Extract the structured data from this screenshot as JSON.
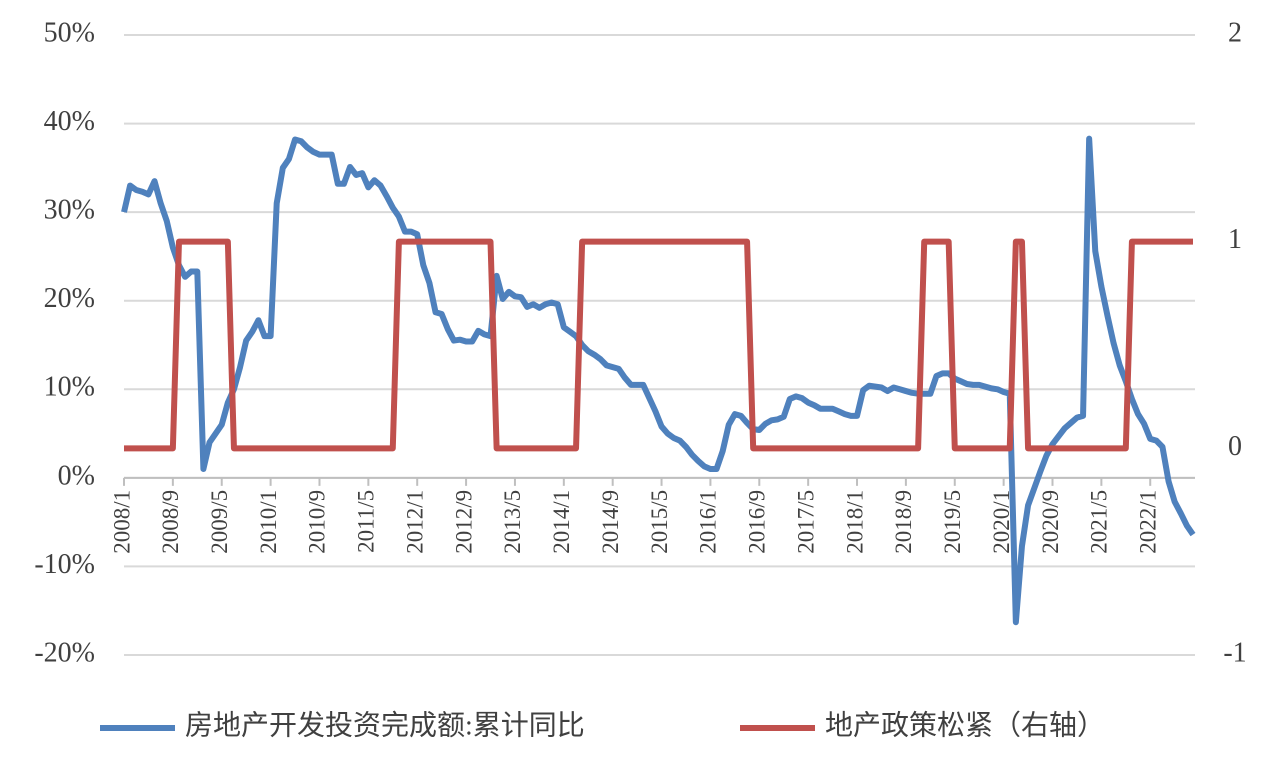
{
  "chart_data": {
    "type": "line",
    "categories": [
      "2008/1",
      null,
      null,
      null,
      null,
      null,
      null,
      null,
      "2008/9",
      null,
      null,
      null,
      null,
      null,
      null,
      null,
      "2009/5",
      null,
      null,
      null,
      null,
      null,
      null,
      null,
      "2010/1",
      null,
      null,
      null,
      null,
      null,
      null,
      null,
      "2010/9",
      null,
      null,
      null,
      null,
      null,
      null,
      null,
      "2011/5",
      null,
      null,
      null,
      null,
      null,
      null,
      null,
      "2012/1",
      null,
      null,
      null,
      null,
      null,
      null,
      null,
      "2012/9",
      null,
      null,
      null,
      null,
      null,
      null,
      null,
      "2013/5",
      null,
      null,
      null,
      null,
      null,
      null,
      null,
      "2014/1",
      null,
      null,
      null,
      null,
      null,
      null,
      null,
      "2014/9",
      null,
      null,
      null,
      null,
      null,
      null,
      null,
      "2015/5",
      null,
      null,
      null,
      null,
      null,
      null,
      null,
      "2016/1",
      null,
      null,
      null,
      null,
      null,
      null,
      null,
      "2016/9",
      null,
      null,
      null,
      null,
      null,
      null,
      null,
      "2017/5",
      null,
      null,
      null,
      null,
      null,
      null,
      null,
      "2018/1",
      null,
      null,
      null,
      null,
      null,
      null,
      null,
      "2018/9",
      null,
      null,
      null,
      null,
      null,
      null,
      null,
      "2019/5",
      null,
      null,
      null,
      null,
      null,
      null,
      null,
      "2020/1",
      null,
      null,
      null,
      null,
      null,
      null,
      null,
      "2020/9",
      null,
      null,
      null,
      null,
      null,
      null,
      null,
      "2021/5",
      null,
      null,
      null,
      null,
      null,
      null,
      null,
      "2022/1",
      null,
      null,
      null,
      null,
      null,
      null,
      null
    ],
    "series": [
      {
        "name": "房地产开发投资完成额:累计同比",
        "color": "#4f81bd",
        "axis": "y",
        "values": [
          30,
          33,
          32.5,
          32.3,
          32,
          33.5,
          31,
          29,
          26,
          24,
          22.7,
          23.3,
          23.3,
          1,
          4,
          5,
          6,
          8.5,
          10,
          12.5,
          15.5,
          16.5,
          17.8,
          16,
          16,
          31,
          35,
          36,
          38.2,
          38,
          37.3,
          36.8,
          36.5,
          36.5,
          36.5,
          33.2,
          33.2,
          35.1,
          34.2,
          34.4,
          32.8,
          33.6,
          33,
          31.8,
          30.5,
          29.5,
          27.8,
          27.8,
          27.5,
          24,
          22,
          18.7,
          18.5,
          16.8,
          15.5,
          15.6,
          15.4,
          15.4,
          16.6,
          16.2,
          16,
          22.8,
          20.2,
          21,
          20.5,
          20.4,
          19.3,
          19.6,
          19.2,
          19.6,
          19.8,
          19.6,
          17,
          16.5,
          16,
          15,
          14.3,
          13.9,
          13.4,
          12.7,
          12.5,
          12.3,
          11.3,
          10.5,
          10.5,
          10.5,
          9,
          7.5,
          5.8,
          5,
          4.5,
          4.2,
          3.5,
          2.6,
          1.9,
          1.3,
          1,
          1,
          3,
          6,
          7.2,
          7,
          6.2,
          5.5,
          5.4,
          6.1,
          6.5,
          6.6,
          6.9,
          8.9,
          9.2,
          9,
          8.5,
          8.2,
          7.8,
          7.8,
          7.8,
          7.5,
          7.2,
          7,
          7,
          9.9,
          10.4,
          10.3,
          10.2,
          9.8,
          10.2,
          10,
          9.8,
          9.6,
          9.5,
          9.5,
          9.5,
          11.5,
          11.8,
          11.8,
          11.2,
          10.9,
          10.6,
          10.5,
          10.5,
          10.3,
          10.1,
          10,
          9.7,
          9.5,
          -16.3,
          -7.7,
          -3.1,
          -1.2,
          0.7,
          2.5,
          3.8,
          4.7,
          5.6,
          6.2,
          6.8,
          7,
          38.3,
          25.6,
          21.6,
          18.3,
          15.2,
          12.7,
          10.9,
          8.9,
          7.2,
          6.1,
          4.4,
          4.2,
          3.5,
          -0.4,
          -2.7,
          -4,
          -5.4,
          -6.4
        ]
      },
      {
        "name": "地产政策松紧（右轴）",
        "color": "#c0504d",
        "axis": "y2",
        "values": [
          0,
          0,
          0,
          0,
          0,
          0,
          0,
          0,
          0,
          1,
          1,
          1,
          1,
          1,
          1,
          1,
          1,
          1,
          0,
          0,
          0,
          0,
          0,
          0,
          0,
          0,
          0,
          0,
          0,
          0,
          0,
          0,
          0,
          0,
          0,
          0,
          0,
          0,
          0,
          0,
          0,
          0,
          0,
          0,
          0,
          1,
          1,
          1,
          1,
          1,
          1,
          1,
          1,
          1,
          1,
          1,
          1,
          1,
          1,
          1,
          1,
          0,
          0,
          0,
          0,
          0,
          0,
          0,
          0,
          0,
          0,
          0,
          0,
          0,
          0,
          1,
          1,
          1,
          1,
          1,
          1,
          1,
          1,
          1,
          1,
          1,
          1,
          1,
          1,
          1,
          1,
          1,
          1,
          1,
          1,
          1,
          1,
          1,
          1,
          1,
          1,
          1,
          1,
          0,
          0,
          0,
          0,
          0,
          0,
          0,
          0,
          0,
          0,
          0,
          0,
          0,
          0,
          0,
          0,
          0,
          0,
          0,
          0,
          0,
          0,
          0,
          0,
          0,
          0,
          0,
          0,
          1,
          1,
          1,
          1,
          1,
          0,
          0,
          0,
          0,
          0,
          0,
          0,
          0,
          0,
          0,
          1,
          1,
          0,
          0,
          0,
          0,
          0,
          0,
          0,
          0,
          0,
          0,
          0,
          0,
          0,
          0,
          0,
          0,
          0,
          1,
          1,
          1,
          1,
          1,
          1,
          1,
          1,
          1,
          1,
          1
        ]
      }
    ],
    "ylim": [
      -20,
      50
    ],
    "yticks": [
      {
        "value": -20,
        "label": "-20%"
      },
      {
        "value": -10,
        "label": "-10%"
      },
      {
        "value": 0,
        "label": "0%"
      },
      {
        "value": 10,
        "label": "10%"
      },
      {
        "value": 20,
        "label": "20%"
      },
      {
        "value": 30,
        "label": "30%"
      },
      {
        "value": 40,
        "label": "40%"
      },
      {
        "value": 50,
        "label": "50%"
      }
    ],
    "y2lim": [
      -1,
      2
    ],
    "y2ticks": [
      -1,
      0,
      1,
      2
    ],
    "grid": true,
    "legend": "bottom"
  }
}
